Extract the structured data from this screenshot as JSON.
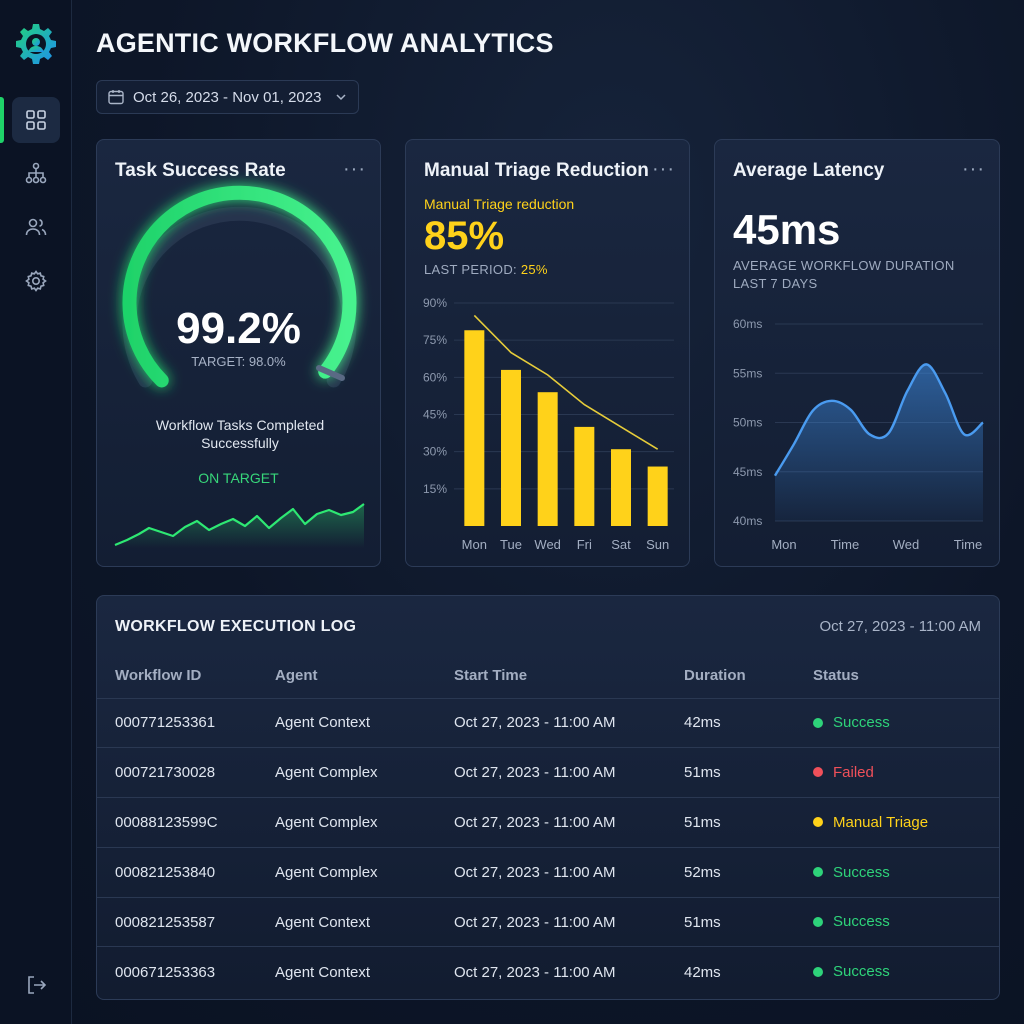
{
  "header": {
    "title": "AGENTIC WORKFLOW ANALYTICS",
    "date_range": "Oct 26, 2023 - Nov 01, 2023"
  },
  "sidebar": {
    "items": [
      {
        "icon": "dashboard-icon",
        "active": true
      },
      {
        "icon": "workflow-icon",
        "active": false
      },
      {
        "icon": "users-icon",
        "active": false
      },
      {
        "icon": "gear-icon",
        "active": false
      }
    ],
    "logout_icon": "logout-icon"
  },
  "colors": {
    "green": "#2ee873",
    "yellow": "#ffd21a",
    "blue": "#4a9bf0",
    "red": "#f0505a"
  },
  "success_card": {
    "title": "Task Success Rate",
    "menu": "···",
    "value": "99.2%",
    "gauge_fraction": 0.992,
    "target": "TARGET: 98.0%",
    "description": "Workflow Tasks Completed Successfully",
    "status": "ON TARGET"
  },
  "triage_card": {
    "title": "Manual Triage Reduction",
    "menu": "···",
    "subtitle": "Manual Triage reduction",
    "value": "85%",
    "last_period_label": "LAST PERIOD:",
    "last_period_value": "25%"
  },
  "latency_card": {
    "title": "Average Latency",
    "menu": "···",
    "value": "45ms",
    "caption_line1": "AVERAGE WORKFLOW DURATION",
    "caption_line2": "LAST 7 DAYS"
  },
  "chart_data": [
    {
      "type": "bar",
      "categories": [
        "Mon",
        "Tue",
        "Wed",
        "Fri",
        "Sat",
        "Sun"
      ],
      "values": [
        79,
        63,
        54,
        40,
        31,
        24
      ],
      "trend_line": [
        85,
        70,
        61,
        49,
        40,
        31
      ],
      "yticks": [
        "15%",
        "30%",
        "45%",
        "60%",
        "75%",
        "90%"
      ],
      "ylim": [
        0,
        90
      ],
      "grid": true
    },
    {
      "type": "area",
      "x_labels": [
        "Mon",
        "Time",
        "Wed",
        "Time"
      ],
      "values": [
        44.6,
        47.8,
        51.2,
        52.2,
        51.3,
        48.8,
        48.9,
        53.2,
        55.9,
        53.0,
        48.8,
        50.0
      ],
      "yticks": [
        "40ms",
        "45ms",
        "50ms",
        "55ms",
        "60ms"
      ],
      "ylim": [
        40,
        60
      ],
      "grid": true
    }
  ],
  "log": {
    "title": "WORKFLOW EXECUTION LOG",
    "date": "Oct 27, 2023 - 11:00 AM",
    "columns": [
      "Workflow ID",
      "Agent",
      "Start Time",
      "Duration",
      "Status"
    ],
    "rows": [
      {
        "id": "000771253361",
        "agent": "Agent Context",
        "start": "Oct 27, 2023 - 11:00 AM",
        "duration": "42ms",
        "status": "Success",
        "color": "#2ed37a"
      },
      {
        "id": "000721730028",
        "agent": "Agent Complex",
        "start": "Oct 27, 2023 - 11:00 AM",
        "duration": "51ms",
        "status": "Failed",
        "color": "#f0505a"
      },
      {
        "id": "00088123599C",
        "agent": "Agent Complex",
        "start": "Oct 27, 2023 - 11:00 AM",
        "duration": "51ms",
        "status": "Manual Triage",
        "color": "#ffd21a"
      },
      {
        "id": "000821253840",
        "agent": "Agent Complex",
        "start": "Oct 27, 2023 - 11:00 AM",
        "duration": "52ms",
        "status": "Success",
        "color": "#2ed37a"
      },
      {
        "id": "000821253587",
        "agent": "Agent Context",
        "start": "Oct 27, 2023 - 11:00 AM",
        "duration": "51ms",
        "status": "Success",
        "color": "#2ed37a"
      },
      {
        "id": "000671253363",
        "agent": "Agent Context",
        "start": "Oct 27, 2023 - 11:00 AM",
        "duration": "42ms",
        "status": "Success",
        "color": "#2ed37a"
      }
    ]
  }
}
